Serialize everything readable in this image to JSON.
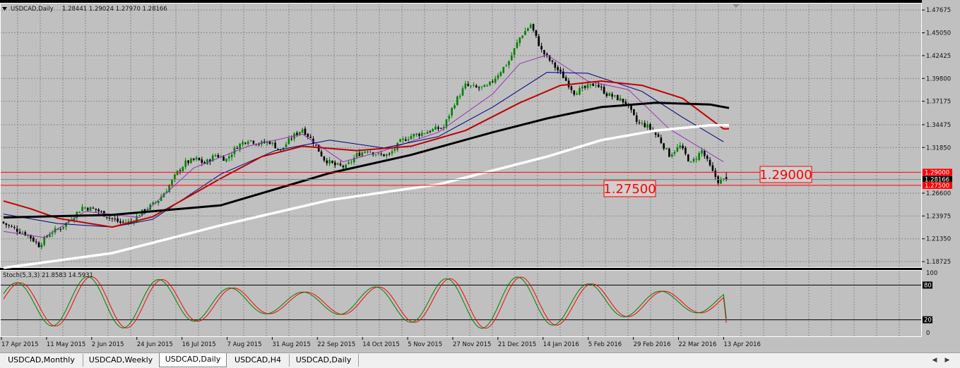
{
  "window": {
    "symbol_header": "USDCAD,Daily",
    "ohlc": "1.28441 1.29024 1.27970 1.28166"
  },
  "price_axis": {
    "ticks": [
      "1.47675",
      "1.45050",
      "1.42425",
      "1.39800",
      "1.37175",
      "1.34475",
      "1.31850",
      "1.29000",
      "1.28166",
      "1.27500",
      "1.26600",
      "1.23975",
      "1.21350",
      "1.18725"
    ]
  },
  "annotations": {
    "upper_level": "1.29000",
    "lower_level": "1.27500"
  },
  "stoch": {
    "header": "Stoch(5,3,3) 21.8583 14.5931",
    "levels": [
      "100",
      "80",
      "20",
      "0"
    ]
  },
  "time_axis": {
    "labels": [
      "17 Apr 2015",
      "11 May 2015",
      "2 Jun 2015",
      "24 Jun 2015",
      "16 Jul 2015",
      "7 Aug 2015",
      "31 Aug 2015",
      "22 Sep 2015",
      "14 Oct 2015",
      "5 Nov 2015",
      "27 Nov 2015",
      "21 Dec 2015",
      "14 Jan 2016",
      "5 Feb 2016",
      "29 Feb 2016",
      "22 Mar 2016",
      "13 Apr 2016"
    ]
  },
  "tabs": [
    {
      "label": "USDCAD,Monthly",
      "active": false
    },
    {
      "label": "USDCAD,Weekly",
      "active": false
    },
    {
      "label": "USDCAD,Daily",
      "active": true
    },
    {
      "label": "USDCAD,H4",
      "active": false
    },
    {
      "label": "USDCAD,Daily",
      "active": false
    }
  ],
  "colors": {
    "background": "#c0c0c0",
    "grid": "#8a8a8a",
    "bull": "#008000",
    "bear": "#000000",
    "level": "#ff0000",
    "ma_sma200": "#ffffff",
    "ma_sma100": "#000000",
    "ma_red": "#c00000",
    "ma_navy": "#000080",
    "ma_purple": "#9a30b8",
    "stoch_main": "#008000",
    "stoch_signal": "#ff0000"
  },
  "chart_data": {
    "type": "candlestick",
    "symbol": "USDCAD",
    "timeframe": "Daily",
    "ylim": [
      1.18,
      1.485
    ],
    "ohlc_last": {
      "open": 1.28441,
      "high": 1.29024,
      "low": 1.2797,
      "close": 1.28166
    },
    "horizontal_levels": [
      1.29,
      1.275
    ],
    "x_labels": [
      "17 Apr 2015",
      "11 May 2015",
      "2 Jun 2015",
      "24 Jun 2015",
      "16 Jul 2015",
      "7 Aug 2015",
      "31 Aug 2015",
      "22 Sep 2015",
      "14 Oct 2015",
      "5 Nov 2015",
      "27 Nov 2015",
      "21 Dec 2015",
      "14 Jan 2016",
      "5 Feb 2016",
      "29 Feb 2016",
      "22 Mar 2016",
      "13 Apr 2016"
    ],
    "close_path": [
      [
        0,
        1.233
      ],
      [
        5,
        1.225
      ],
      [
        10,
        1.218
      ],
      [
        14,
        1.206
      ],
      [
        18,
        1.22
      ],
      [
        22,
        1.226
      ],
      [
        27,
        1.24
      ],
      [
        30,
        1.25
      ],
      [
        35,
        1.247
      ],
      [
        40,
        1.238
      ],
      [
        44,
        1.232
      ],
      [
        48,
        1.233
      ],
      [
        51,
        1.242
      ],
      [
        55,
        1.251
      ],
      [
        58,
        1.258
      ],
      [
        61,
        1.27
      ],
      [
        65,
        1.29
      ],
      [
        68,
        1.301
      ],
      [
        72,
        1.305
      ],
      [
        75,
        1.3
      ],
      [
        79,
        1.31
      ],
      [
        83,
        1.305
      ],
      [
        87,
        1.32
      ],
      [
        91,
        1.328
      ],
      [
        95,
        1.323
      ],
      [
        99,
        1.325
      ],
      [
        103,
        1.315
      ],
      [
        107,
        1.33
      ],
      [
        111,
        1.34
      ],
      [
        115,
        1.325
      ],
      [
        119,
        1.305
      ],
      [
        123,
        1.298
      ],
      [
        127,
        1.296
      ],
      [
        131,
        1.31
      ],
      [
        135,
        1.316
      ],
      [
        139,
        1.31
      ],
      [
        143,
        1.31
      ],
      [
        147,
        1.325
      ],
      [
        151,
        1.332
      ],
      [
        155,
        1.335
      ],
      [
        159,
        1.339
      ],
      [
        163,
        1.342
      ],
      [
        167,
        1.37
      ],
      [
        171,
        1.39
      ],
      [
        175,
        1.387
      ],
      [
        179,
        1.388
      ],
      [
        183,
        1.403
      ],
      [
        187,
        1.418
      ],
      [
        191,
        1.445
      ],
      [
        195,
        1.46
      ],
      [
        199,
        1.43
      ],
      [
        203,
        1.415
      ],
      [
        207,
        1.4
      ],
      [
        211,
        1.382
      ],
      [
        215,
        1.387
      ],
      [
        219,
        1.392
      ],
      [
        223,
        1.38
      ],
      [
        227,
        1.375
      ],
      [
        230,
        1.37
      ],
      [
        234,
        1.348
      ],
      [
        238,
        1.343
      ],
      [
        242,
        1.33
      ],
      [
        246,
        1.31
      ],
      [
        250,
        1.32
      ],
      [
        254,
        1.3
      ],
      [
        258,
        1.315
      ],
      [
        262,
        1.29
      ],
      [
        264,
        1.28
      ],
      [
        267,
        1.2817
      ]
    ],
    "indicators": {
      "sma_white": [
        [
          0,
          1.18
        ],
        [
          40,
          1.197
        ],
        [
          80,
          1.229
        ],
        [
          120,
          1.258
        ],
        [
          160,
          1.276
        ],
        [
          180,
          1.292
        ],
        [
          200,
          1.308
        ],
        [
          220,
          1.327
        ],
        [
          240,
          1.338
        ],
        [
          260,
          1.344
        ],
        [
          267,
          1.344
        ]
      ],
      "sma_black": [
        [
          0,
          1.238
        ],
        [
          40,
          1.241
        ],
        [
          80,
          1.252
        ],
        [
          120,
          1.289
        ],
        [
          150,
          1.31
        ],
        [
          180,
          1.336
        ],
        [
          200,
          1.352
        ],
        [
          220,
          1.365
        ],
        [
          240,
          1.37
        ],
        [
          260,
          1.368
        ],
        [
          267,
          1.364
        ]
      ],
      "ema_red": [
        [
          0,
          1.257
        ],
        [
          10,
          1.248
        ],
        [
          20,
          1.237
        ],
        [
          40,
          1.227
        ],
        [
          55,
          1.239
        ],
        [
          80,
          1.283
        ],
        [
          95,
          1.308
        ],
        [
          110,
          1.32
        ],
        [
          130,
          1.315
        ],
        [
          150,
          1.32
        ],
        [
          170,
          1.338
        ],
        [
          190,
          1.37
        ],
        [
          205,
          1.39
        ],
        [
          220,
          1.395
        ],
        [
          235,
          1.39
        ],
        [
          250,
          1.375
        ],
        [
          265,
          1.34
        ],
        [
          267,
          1.34
        ]
      ],
      "ema_navy": [
        [
          0,
          1.242
        ],
        [
          20,
          1.231
        ],
        [
          40,
          1.227
        ],
        [
          55,
          1.236
        ],
        [
          80,
          1.288
        ],
        [
          100,
          1.315
        ],
        [
          120,
          1.327
        ],
        [
          140,
          1.318
        ],
        [
          160,
          1.331
        ],
        [
          180,
          1.365
        ],
        [
          200,
          1.405
        ],
        [
          215,
          1.404
        ],
        [
          235,
          1.383
        ],
        [
          250,
          1.353
        ],
        [
          265,
          1.325
        ]
      ],
      "ema_purple": [
        [
          0,
          1.222
        ],
        [
          15,
          1.215
        ],
        [
          30,
          1.245
        ],
        [
          50,
          1.238
        ],
        [
          70,
          1.295
        ],
        [
          90,
          1.32
        ],
        [
          110,
          1.334
        ],
        [
          125,
          1.302
        ],
        [
          140,
          1.315
        ],
        [
          160,
          1.336
        ],
        [
          180,
          1.38
        ],
        [
          190,
          1.415
        ],
        [
          200,
          1.425
        ],
        [
          215,
          1.395
        ],
        [
          230,
          1.385
        ],
        [
          245,
          1.34
        ],
        [
          265,
          1.302
        ]
      ]
    },
    "stochastic": {
      "params": "5,3,3",
      "main": 21.8583,
      "signal": 14.5931,
      "levels": [
        80,
        20
      ]
    }
  }
}
